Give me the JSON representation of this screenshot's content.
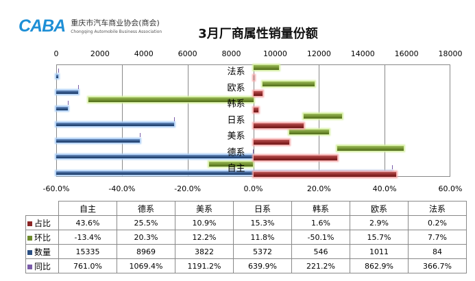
{
  "logo": {
    "mark": "CABA",
    "cn": "重庆市汽车商业协会(商会)",
    "en": "Chongqing Automobile Business Association"
  },
  "chart_data": {
    "type": "bar",
    "title": "3月厂商属性销量份额",
    "categories": [
      "自主",
      "德系",
      "美系",
      "日系",
      "韩系",
      "欧系",
      "法系"
    ],
    "series": [
      {
        "name": "占比",
        "unit": "%",
        "color": "#8b2525",
        "values": [
          43.6,
          25.5,
          10.9,
          15.3,
          1.6,
          2.9,
          0.2
        ],
        "labels": [
          "43.6%",
          "25.5%",
          "10.9%",
          "15.3%",
          "1.6%",
          "2.9%",
          "0.2%"
        ]
      },
      {
        "name": "环比",
        "unit": "%",
        "color": "#6d8b2c",
        "values": [
          -13.4,
          20.3,
          12.2,
          11.8,
          -50.1,
          15.7,
          7.7
        ],
        "labels": [
          "-13.4%",
          "20.3%",
          "12.2%",
          "11.8%",
          "-50.1%",
          "15.7%",
          "7.7%"
        ]
      },
      {
        "name": "数量",
        "unit": "",
        "color": "#2b4f82",
        "values": [
          15335,
          8969,
          3822,
          5372,
          546,
          1011,
          84
        ],
        "labels": [
          "15335",
          "8969",
          "3822",
          "5372",
          "546",
          "1011",
          "84"
        ]
      },
      {
        "name": "同比",
        "unit": "%",
        "color": "#7a5ba8",
        "values": [
          761.0,
          1069.4,
          1191.2,
          639.9,
          221.2,
          862.9,
          366.7
        ],
        "labels": [
          "761.0%",
          "1069.4%",
          "1191.2%",
          "639.9%",
          "221.2%",
          "862.9%",
          "366.7%"
        ]
      }
    ],
    "top_axis": {
      "range": [
        0,
        18000
      ],
      "ticks": [
        "0",
        "2000",
        "4000",
        "6000",
        "8000",
        "10000",
        "12000",
        "14000",
        "16000",
        "18000"
      ]
    },
    "bottom_axis": {
      "range": [
        -60,
        60
      ],
      "ticks": [
        "-60.0%",
        "-40.0%",
        "-20.0%",
        "0.0%",
        "20.0%",
        "40.0%",
        "60.0%"
      ]
    },
    "grid": true,
    "legend": "data-table-below"
  }
}
